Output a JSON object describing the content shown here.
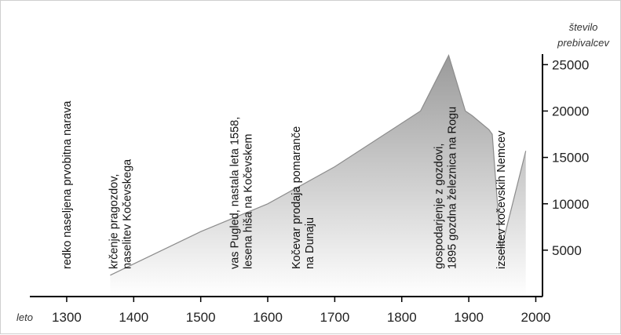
{
  "chart_data": {
    "type": "area",
    "xlabel": "leto",
    "ylabel": [
      "število",
      "prebivalcev"
    ],
    "xlim": [
      1245,
      2010
    ],
    "ylim": [
      0,
      28500
    ],
    "x_ticks": [
      1300,
      1400,
      1500,
      1600,
      1700,
      1800,
      1900,
      2000
    ],
    "y_ticks": [
      5000,
      10000,
      15000,
      20000,
      25000
    ],
    "series": [
      {
        "x": [
          1365,
          1500,
          1600,
          1700,
          1828,
          1870,
          1895,
          1905,
          1930,
          1935,
          1948,
          1985
        ],
        "y": [
          2300,
          7000,
          10000,
          14000,
          20000,
          26000,
          20000,
          19500,
          18000,
          17500,
          5000,
          15700
        ]
      }
    ],
    "annotations": [
      {
        "x": 1300,
        "lines": [
          "redko naseljena prvobitna narava"
        ]
      },
      {
        "x": 1380,
        "lines": [
          "krčenje pragozdov,",
          "naselitev Kočevskega"
        ]
      },
      {
        "x": 1560,
        "lines": [
          "vas Pugled, nastala leta 1558,",
          "lesena hiša na Kočevskem"
        ]
      },
      {
        "x": 1652,
        "lines": [
          "Kočevar prodaja pomaranče",
          "na Dunaju"
        ]
      },
      {
        "x": 1865,
        "lines": [
          "gospodarjenje z gozdovi,",
          "1895 gozdna železnica na Rogu"
        ]
      },
      {
        "x": 1948,
        "lines": [
          "izselitev kočevskih Nemcev"
        ]
      }
    ],
    "colors": {
      "fill_top": "#9a9a9a",
      "fill_bottom": "#ffffff",
      "axis": "#000000"
    }
  }
}
